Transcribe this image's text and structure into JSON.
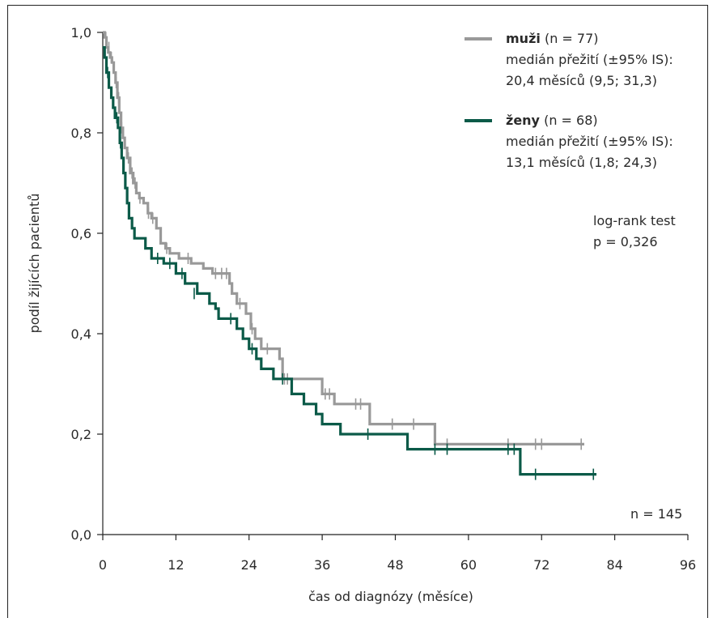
{
  "chart_data": {
    "type": "line",
    "subtype": "kaplan-meier",
    "xlabel": "čas od diagnózy (měsíce)",
    "ylabel": "podíl žijících pacientů",
    "xlim": [
      0,
      96
    ],
    "ylim": [
      0,
      1
    ],
    "xticks": [
      "0",
      "12",
      "24",
      "36",
      "48",
      "60",
      "72",
      "84",
      "96"
    ],
    "yticks": [
      "0,0",
      "0,2",
      "0,4",
      "0,6",
      "0,8",
      "1,0"
    ],
    "xtick_values": [
      0,
      12,
      24,
      36,
      48,
      60,
      72,
      84,
      96
    ],
    "ytick_values": [
      0,
      0.2,
      0.4,
      0.6,
      0.8,
      1.0
    ],
    "legend_position": "top-right",
    "series": [
      {
        "name": "muži",
        "n_label": " (n = 77)",
        "median_line1": "medián přežití (±95% IS):",
        "median_line2": "20,4 měsíců (9,5; 31,3)",
        "color": "#999999",
        "steps": [
          [
            0,
            1.0
          ],
          [
            0.3,
            0.99
          ],
          [
            0.6,
            0.97
          ],
          [
            0.9,
            0.96
          ],
          [
            1.2,
            0.95
          ],
          [
            1.5,
            0.94
          ],
          [
            1.8,
            0.92
          ],
          [
            2.1,
            0.9
          ],
          [
            2.4,
            0.87
          ],
          [
            2.7,
            0.84
          ],
          [
            3.0,
            0.81
          ],
          [
            3.3,
            0.79
          ],
          [
            3.6,
            0.77
          ],
          [
            4.0,
            0.75
          ],
          [
            4.5,
            0.72
          ],
          [
            5.0,
            0.7
          ],
          [
            5.5,
            0.68
          ],
          [
            6.0,
            0.67
          ],
          [
            6.7,
            0.66
          ],
          [
            7.4,
            0.64
          ],
          [
            8.0,
            0.63
          ],
          [
            8.8,
            0.61
          ],
          [
            9.5,
            0.58
          ],
          [
            10.3,
            0.57
          ],
          [
            11.0,
            0.56
          ],
          [
            12.5,
            0.55
          ],
          [
            14.5,
            0.54
          ],
          [
            16.5,
            0.53
          ],
          [
            18.0,
            0.52
          ],
          [
            20.8,
            0.5
          ],
          [
            21.2,
            0.48
          ],
          [
            22.0,
            0.46
          ],
          [
            23.5,
            0.44
          ],
          [
            24.3,
            0.41
          ],
          [
            25.0,
            0.39
          ],
          [
            26.0,
            0.37
          ],
          [
            29.0,
            0.35
          ],
          [
            29.5,
            0.31
          ],
          [
            36.0,
            0.28
          ],
          [
            38.0,
            0.26
          ],
          [
            43.8,
            0.22
          ],
          [
            54.5,
            0.18
          ],
          [
            79.0,
            0.18
          ]
        ],
        "censored": [
          [
            0.5,
            0.99
          ],
          [
            1.0,
            0.97
          ],
          [
            1.4,
            0.95
          ],
          [
            2.2,
            0.9
          ],
          [
            2.6,
            0.87
          ],
          [
            3.1,
            0.81
          ],
          [
            4.2,
            0.75
          ],
          [
            4.8,
            0.72
          ],
          [
            5.3,
            0.7
          ],
          [
            6.1,
            0.67
          ],
          [
            7.5,
            0.64
          ],
          [
            8.2,
            0.63
          ],
          [
            10.5,
            0.57
          ],
          [
            14.0,
            0.55
          ],
          [
            18.5,
            0.52
          ],
          [
            19.5,
            0.52
          ],
          [
            20.3,
            0.52
          ],
          [
            22.5,
            0.46
          ],
          [
            24.5,
            0.41
          ],
          [
            27.0,
            0.37
          ],
          [
            29.8,
            0.31
          ],
          [
            30.3,
            0.31
          ],
          [
            36.5,
            0.28
          ],
          [
            37.2,
            0.28
          ],
          [
            41.5,
            0.26
          ],
          [
            42.3,
            0.26
          ],
          [
            47.5,
            0.22
          ],
          [
            51.0,
            0.22
          ],
          [
            56.5,
            0.18
          ],
          [
            66.5,
            0.18
          ],
          [
            71.0,
            0.18
          ],
          [
            72.0,
            0.18
          ],
          [
            78.5,
            0.18
          ]
        ]
      },
      {
        "name": "ženy",
        "n_label": " (n = 68)",
        "median_line1": "medián přežití (±95% IS):",
        "median_line2": "13,1 měsíců (1,8; 24,3)",
        "color": "#0b5a48",
        "steps": [
          [
            0,
            0.97
          ],
          [
            0.3,
            0.95
          ],
          [
            0.6,
            0.92
          ],
          [
            1.0,
            0.89
          ],
          [
            1.4,
            0.87
          ],
          [
            1.7,
            0.85
          ],
          [
            2.0,
            0.83
          ],
          [
            2.5,
            0.81
          ],
          [
            2.8,
            0.78
          ],
          [
            3.1,
            0.75
          ],
          [
            3.4,
            0.72
          ],
          [
            3.7,
            0.69
          ],
          [
            4.0,
            0.66
          ],
          [
            4.3,
            0.63
          ],
          [
            4.8,
            0.61
          ],
          [
            5.2,
            0.59
          ],
          [
            7.0,
            0.57
          ],
          [
            8.0,
            0.55
          ],
          [
            10.0,
            0.54
          ],
          [
            12.0,
            0.52
          ],
          [
            13.5,
            0.5
          ],
          [
            15.5,
            0.48
          ],
          [
            17.5,
            0.46
          ],
          [
            18.5,
            0.45
          ],
          [
            19.0,
            0.43
          ],
          [
            22.0,
            0.41
          ],
          [
            23.0,
            0.39
          ],
          [
            24.0,
            0.37
          ],
          [
            25.2,
            0.35
          ],
          [
            26.0,
            0.33
          ],
          [
            28.0,
            0.31
          ],
          [
            31.0,
            0.28
          ],
          [
            33.0,
            0.26
          ],
          [
            35.0,
            0.24
          ],
          [
            36.0,
            0.22
          ],
          [
            39.0,
            0.2
          ],
          [
            50.0,
            0.17
          ],
          [
            68.5,
            0.12
          ],
          [
            81.0,
            0.12
          ]
        ],
        "censored": [
          [
            0.8,
            0.92
          ],
          [
            2.3,
            0.83
          ],
          [
            2.9,
            0.78
          ],
          [
            9.0,
            0.55
          ],
          [
            11.0,
            0.54
          ],
          [
            13.0,
            0.52
          ],
          [
            15.0,
            0.48
          ],
          [
            21.0,
            0.43
          ],
          [
            24.5,
            0.37
          ],
          [
            29.5,
            0.31
          ],
          [
            43.5,
            0.2
          ],
          [
            54.5,
            0.17
          ],
          [
            56.5,
            0.17
          ],
          [
            66.5,
            0.17
          ],
          [
            67.5,
            0.17
          ],
          [
            71.0,
            0.12
          ],
          [
            80.5,
            0.12
          ]
        ]
      }
    ],
    "annotations": {
      "test_line1": "log-rank test",
      "test_line2": "p = 0,326",
      "total_n": "n = 145"
    }
  }
}
